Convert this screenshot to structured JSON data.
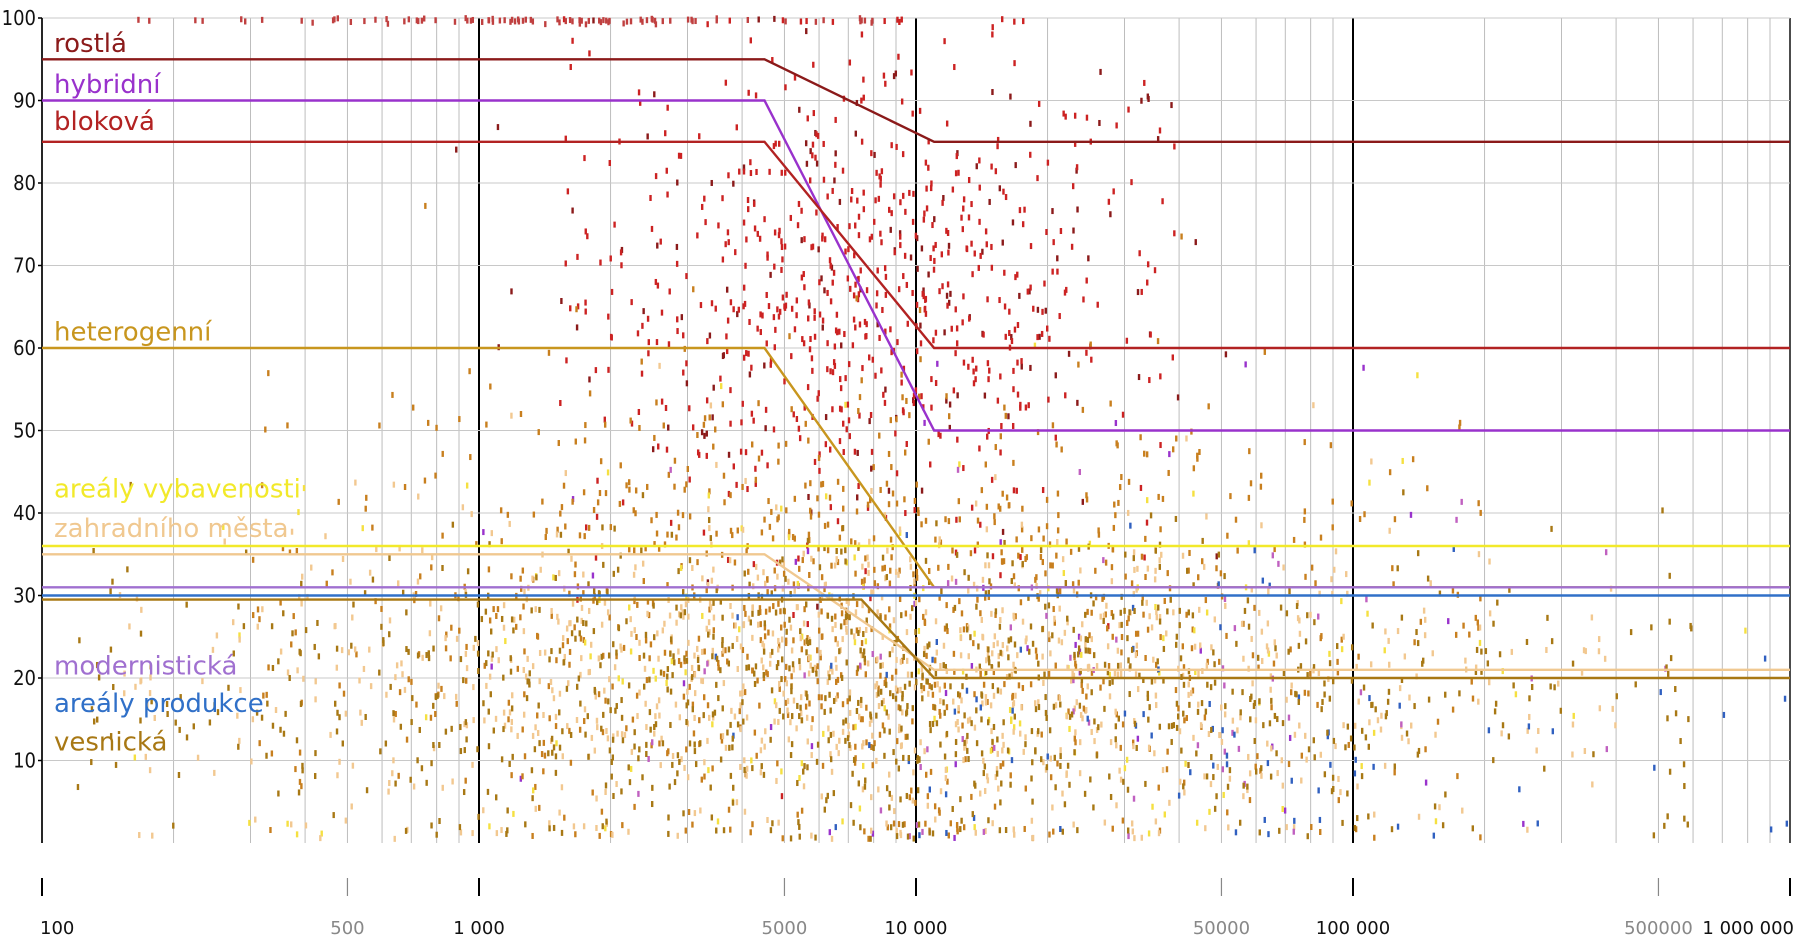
{
  "chart_data": {
    "type": "scatter",
    "title": "",
    "xlabel": "",
    "ylabel": "",
    "x_scale": "log",
    "xlim": [
      100,
      1000000
    ],
    "ylim": [
      0,
      100
    ],
    "y_ticks": [
      10,
      20,
      30,
      40,
      50,
      60,
      70,
      80,
      90,
      100
    ],
    "x_ticks": [
      {
        "value": 100,
        "label": "100",
        "major": true
      },
      {
        "value": 500,
        "label": "500",
        "major": false
      },
      {
        "value": 1000,
        "label": "1 000",
        "major": true
      },
      {
        "value": 5000,
        "label": "5000",
        "major": false
      },
      {
        "value": 10000,
        "label": "10 000",
        "major": true
      },
      {
        "value": 50000,
        "label": "50000",
        "major": false
      },
      {
        "value": 100000,
        "label": "100 000",
        "major": true
      },
      {
        "value": 500000,
        "label": "500000",
        "major": false
      },
      {
        "value": 1000000,
        "label": "1 000 000",
        "major": true
      }
    ],
    "grid": true,
    "threshold_lines": [
      {
        "name": "rostlá",
        "color": "#8b1a1a",
        "points": [
          [
            100,
            95
          ],
          [
            4500,
            95
          ],
          [
            11000,
            85
          ],
          [
            1000000,
            85
          ]
        ]
      },
      {
        "name": "hybridní",
        "color": "#9932cc",
        "points": [
          [
            100,
            90
          ],
          [
            4500,
            90
          ],
          [
            11000,
            50
          ],
          [
            1000000,
            50
          ]
        ]
      },
      {
        "name": "bloková",
        "color": "#b22222",
        "points": [
          [
            100,
            85
          ],
          [
            4500,
            85
          ],
          [
            11000,
            60
          ],
          [
            1000000,
            60
          ]
        ]
      },
      {
        "name": "heterogenní",
        "color": "#c8961e",
        "points": [
          [
            100,
            60
          ],
          [
            4500,
            60
          ],
          [
            11000,
            31
          ],
          [
            1000000,
            31
          ]
        ]
      },
      {
        "name": "areály vybavenosti",
        "color": "#f2e92a",
        "points": [
          [
            100,
            36
          ],
          [
            1000000,
            36
          ]
        ]
      },
      {
        "name": "zahradního města",
        "color": "#f0c890",
        "points": [
          [
            100,
            35
          ],
          [
            4500,
            35
          ],
          [
            11000,
            21
          ],
          [
            1000000,
            21
          ]
        ]
      },
      {
        "name": "modernistická",
        "color": "#a070d0",
        "points": [
          [
            100,
            31
          ],
          [
            1000000,
            31
          ]
        ]
      },
      {
        "name": "areály produkce",
        "color": "#3070c8",
        "points": [
          [
            100,
            30
          ],
          [
            1000000,
            30
          ]
        ]
      },
      {
        "name": "vesnická",
        "color": "#a87814",
        "points": [
          [
            100,
            29.5
          ],
          [
            7500,
            29.5
          ],
          [
            11000,
            20
          ],
          [
            1000000,
            20
          ]
        ]
      }
    ],
    "legend": [
      {
        "label": "rostlá",
        "color": "#8b1a1a",
        "y": 97
      },
      {
        "label": "hybridní",
        "color": "#9932cc",
        "y": 92
      },
      {
        "label": "bloková",
        "color": "#b22222",
        "y": 87.5
      },
      {
        "label": "heterogenní",
        "color": "#c8961e",
        "y": 62
      },
      {
        "label": "areály vybavenosti",
        "color": "#f2e92a",
        "y": 43
      },
      {
        "label": "zahradního města",
        "color": "#f0c890",
        "y": 38.2
      },
      {
        "label": "modernistická",
        "color": "#a070d0",
        "y": 21.5
      },
      {
        "label": "areály produkce",
        "color": "#3070c8",
        "y": 17
      },
      {
        "label": "vesnická",
        "color": "#a87814",
        "y": 12.3
      }
    ],
    "point_clusters": [
      {
        "name": "rostlá",
        "color": "#8b1a1a",
        "count": 150,
        "x_range": [
          800,
          60000
        ],
        "x_center": 8000,
        "y_center": 68,
        "y_spread": 15
      },
      {
        "name": "bloková",
        "color": "#cc2222",
        "count": 650,
        "x_range": [
          1500,
          40000
        ],
        "x_center": 7500,
        "y_center": 66,
        "y_spread": 15
      },
      {
        "name": "hybridní",
        "color": "#9932cc",
        "count": 40,
        "x_range": [
          1000,
          500000
        ],
        "x_center": 15000,
        "y_center": 30,
        "y_spread": 20
      },
      {
        "name": "heterogenní",
        "color": "#c87f1e",
        "count": 950,
        "x_range": [
          300,
          200000
        ],
        "x_center": 7000,
        "y_center": 28,
        "y_spread": 14
      },
      {
        "name": "areály vybavenosti",
        "color": "#f5e040",
        "count": 140,
        "x_range": [
          150,
          800000
        ],
        "x_center": 10000,
        "y_center": 22,
        "y_spread": 14
      },
      {
        "name": "zahradního města",
        "color": "#f2c890",
        "count": 950,
        "x_range": [
          150,
          400000
        ],
        "x_center": 7000,
        "y_center": 20,
        "y_spread": 10
      },
      {
        "name": "modernistická",
        "color": "#c060c0",
        "count": 60,
        "x_range": [
          2000,
          800000
        ],
        "x_center": 30000,
        "y_center": 18,
        "y_spread": 12
      },
      {
        "name": "areály produkce",
        "color": "#3060c0",
        "count": 80,
        "x_range": [
          3000,
          1000000
        ],
        "x_center": 60000,
        "y_center": 13,
        "y_spread": 10
      },
      {
        "name": "vesnická",
        "color": "#a87814",
        "count": 1000,
        "x_range": [
          120,
          600000
        ],
        "x_center": 8000,
        "y_center": 18,
        "y_spread": 9
      },
      {
        "name": "top-edge",
        "color": "#c04040",
        "count": 90,
        "x_range": [
          110,
          8000
        ],
        "x_center": 1200,
        "y_center": 99.7,
        "y_spread": 0.2
      }
    ]
  }
}
